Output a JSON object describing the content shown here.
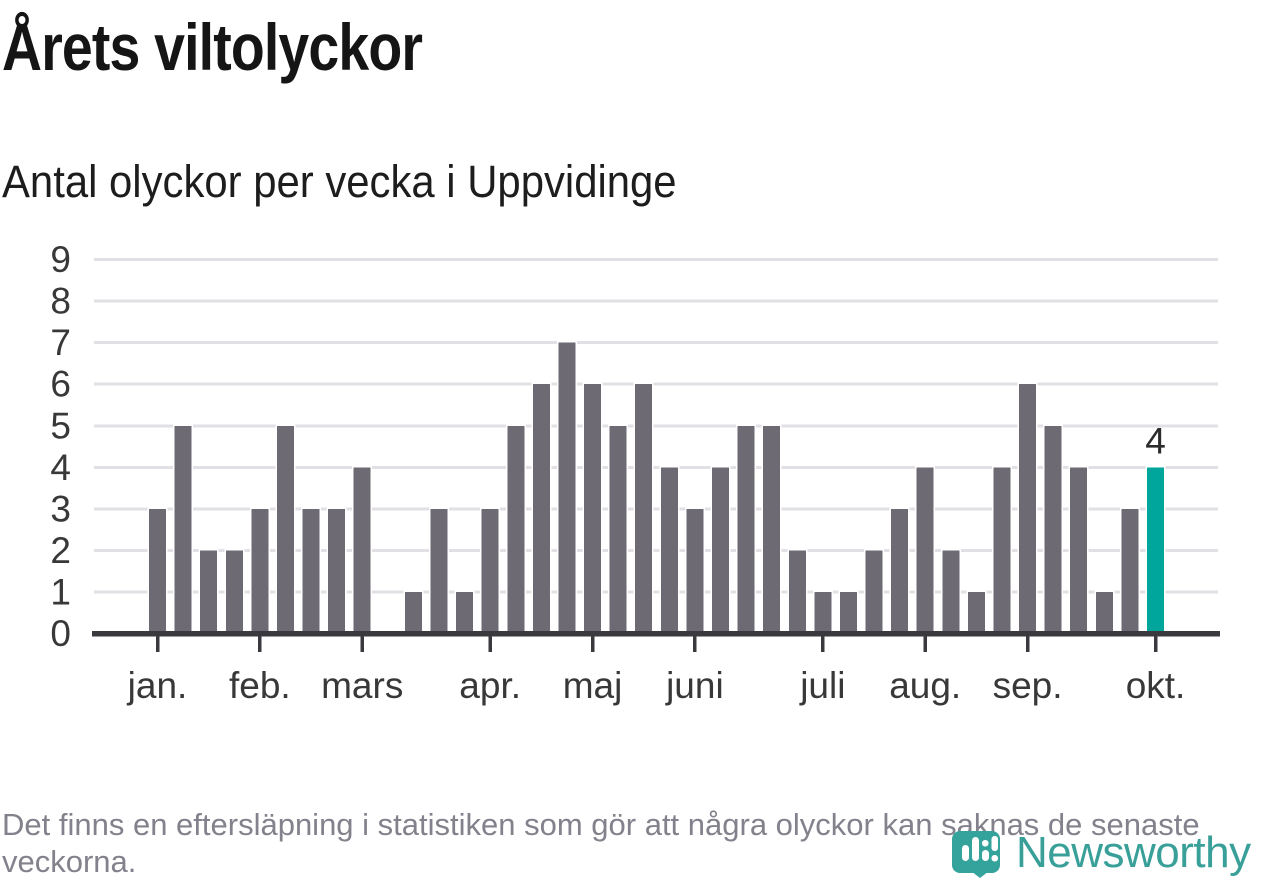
{
  "header": {
    "title": "Årets viltolyckor",
    "subtitle": "Antal olyckor per vecka i Uppvidinge"
  },
  "chart_data": {
    "type": "bar",
    "title": "Årets viltolyckor",
    "subtitle": "Antal olyckor per vecka i Uppvidinge",
    "x_unit": "week",
    "weeks_range": [
      1,
      40
    ],
    "values": [
      3,
      5,
      2,
      2,
      3,
      5,
      3,
      3,
      4,
      0,
      1,
      3,
      1,
      3,
      5,
      6,
      7,
      6,
      5,
      6,
      4,
      3,
      4,
      5,
      5,
      2,
      1,
      1,
      2,
      3,
      4,
      2,
      1,
      4,
      6,
      5,
      4,
      1,
      3,
      4
    ],
    "highlight_index": 39,
    "highlight_label": "4",
    "month_ticks": [
      {
        "week": 1,
        "label": "jan."
      },
      {
        "week": 5,
        "label": "feb."
      },
      {
        "week": 9,
        "label": "mars"
      },
      {
        "week": 14,
        "label": "apr."
      },
      {
        "week": 18,
        "label": "maj"
      },
      {
        "week": 22,
        "label": "juni"
      },
      {
        "week": 27,
        "label": "juli"
      },
      {
        "week": 31,
        "label": "aug."
      },
      {
        "week": 35,
        "label": "sep."
      },
      {
        "week": 40,
        "label": "okt."
      }
    ],
    "y_ticks": [
      0,
      1,
      2,
      3,
      4,
      5,
      6,
      7,
      8,
      9
    ],
    "ylim": [
      0,
      9
    ],
    "grid": "horizontal",
    "legend": "none",
    "bar_color": "#6d6a73",
    "highlight_color": "#00a69c",
    "grid_color": "#e2e0e4",
    "axis_color": "#3a393d",
    "tick_label_color": "#383838",
    "value_label_color": "#2b2b2b"
  },
  "footer": {
    "note": "Det finns en eftersläpning i statistiken som gör att några olyckor kan saknas de senaste veckorna.",
    "brand": "Newsworthy",
    "brand_color": "#38a099"
  }
}
